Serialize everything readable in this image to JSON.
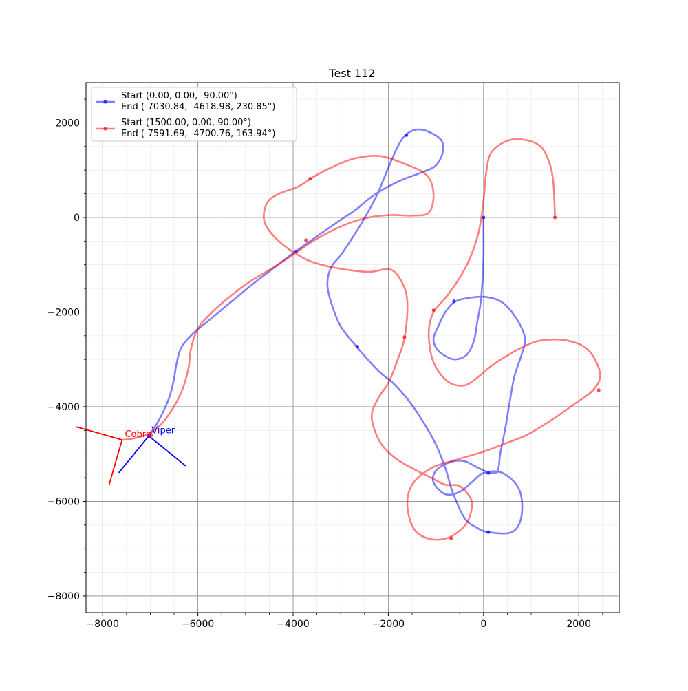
{
  "chart_data": {
    "type": "line",
    "title": "Test 112",
    "xlabel": "",
    "ylabel": "",
    "xlim": [
      -8350,
      2850
    ],
    "ylim": [
      -8350,
      2850
    ],
    "xticks": [
      -8000,
      -6000,
      -4000,
      -2000,
      0,
      2000
    ],
    "yticks": [
      -8000,
      -6000,
      -4000,
      -2000,
      0,
      2000
    ],
    "xtick_labels": [
      "−8000",
      "−6000",
      "−4000",
      "−2000",
      "0",
      "2000"
    ],
    "ytick_labels": [
      "−8000",
      "−6000",
      "−4000",
      "−2000",
      "0",
      "2000"
    ],
    "grid": true,
    "minor_grid": true,
    "legend_position": "upper-left",
    "series": [
      {
        "name_line1": "Start (0.00, 0.00, -90.00°)",
        "name_line2": " End  (-7030.84, -4618.98, 230.85°)",
        "color": "#0000ff",
        "points": [
          [
            0,
            0
          ],
          [
            0,
            -300
          ],
          [
            0,
            -800
          ],
          [
            -20,
            -1300
          ],
          [
            -60,
            -1800
          ],
          [
            -130,
            -2200
          ],
          [
            -200,
            -2600
          ],
          [
            -350,
            -2900
          ],
          [
            -600,
            -3000
          ],
          [
            -850,
            -2900
          ],
          [
            -1000,
            -2750
          ],
          [
            -1050,
            -2550
          ],
          [
            -950,
            -2300
          ],
          [
            -800,
            -2000
          ],
          [
            -600,
            -1780
          ],
          [
            -300,
            -1700
          ],
          [
            50,
            -1680
          ],
          [
            400,
            -1800
          ],
          [
            700,
            -2150
          ],
          [
            870,
            -2550
          ],
          [
            800,
            -2900
          ],
          [
            650,
            -3350
          ],
          [
            550,
            -3900
          ],
          [
            450,
            -4500
          ],
          [
            350,
            -5000
          ],
          [
            300,
            -5350
          ],
          [
            150,
            -5400
          ],
          [
            -100,
            -5300
          ],
          [
            -400,
            -5150
          ],
          [
            -700,
            -5170
          ],
          [
            -1000,
            -5350
          ],
          [
            -1050,
            -5600
          ],
          [
            -800,
            -5850
          ],
          [
            -500,
            -5800
          ],
          [
            -250,
            -5600
          ],
          [
            0,
            -5400
          ],
          [
            400,
            -5400
          ],
          [
            750,
            -5750
          ],
          [
            800,
            -6300
          ],
          [
            600,
            -6650
          ],
          [
            100,
            -6650
          ],
          [
            -150,
            -6550
          ],
          [
            -400,
            -6350
          ],
          [
            -650,
            -5800
          ],
          [
            -800,
            -5300
          ],
          [
            -1000,
            -4800
          ],
          [
            -1250,
            -4350
          ],
          [
            -1550,
            -3900
          ],
          [
            -1900,
            -3500
          ],
          [
            -2200,
            -3250
          ],
          [
            -2650,
            -2750
          ],
          [
            -3000,
            -2300
          ],
          [
            -3200,
            -1800
          ],
          [
            -3280,
            -1400
          ],
          [
            -3200,
            -1050
          ],
          [
            -3000,
            -800
          ],
          [
            -2800,
            -500
          ],
          [
            -2550,
            -100
          ],
          [
            -2250,
            450
          ],
          [
            -2000,
            1050
          ],
          [
            -1800,
            1500
          ],
          [
            -1650,
            1730
          ],
          [
            -1450,
            1850
          ],
          [
            -1200,
            1830
          ],
          [
            -900,
            1650
          ],
          [
            -850,
            1400
          ],
          [
            -1000,
            1100
          ],
          [
            -1300,
            950
          ],
          [
            -1700,
            800
          ],
          [
            -2100,
            600
          ],
          [
            -2400,
            400
          ],
          [
            -2700,
            150
          ],
          [
            -3000,
            -50
          ],
          [
            -3400,
            -330
          ],
          [
            -3950,
            -720
          ],
          [
            -4450,
            -1100
          ],
          [
            -4900,
            -1450
          ],
          [
            -5200,
            -1700
          ],
          [
            -5500,
            -1950
          ],
          [
            -5800,
            -2200
          ],
          [
            -6100,
            -2450
          ],
          [
            -6350,
            -2750
          ],
          [
            -6450,
            -3100
          ],
          [
            -6500,
            -3400
          ],
          [
            -6600,
            -3800
          ],
          [
            -6800,
            -4250
          ],
          [
            -7030.84,
            -4618.98
          ]
        ],
        "markers": [
          [
            0,
            0
          ],
          [
            -620,
            -1770
          ],
          [
            -1620,
            1740
          ],
          [
            -2650,
            -2730
          ],
          [
            -3940,
            -720
          ],
          [
            100,
            -5400
          ],
          [
            100,
            -6650
          ],
          [
            -7030.84,
            -4618.98
          ]
        ],
        "end_label": "Viper",
        "end_heading_deg": 230.85
      },
      {
        "name_line1": "Start (1500.00, 0.00, 90.00°)",
        "name_line2": " End  (-7591.69, -4700.76, 163.94°)",
        "color": "#ff0000",
        "points": [
          [
            1500,
            0
          ],
          [
            1490,
            300
          ],
          [
            1470,
            700
          ],
          [
            1400,
            1100
          ],
          [
            1200,
            1500
          ],
          [
            800,
            1650
          ],
          [
            450,
            1600
          ],
          [
            150,
            1350
          ],
          [
            50,
            900
          ],
          [
            0,
            350
          ],
          [
            -100,
            -300
          ],
          [
            -300,
            -900
          ],
          [
            -550,
            -1350
          ],
          [
            -800,
            -1700
          ],
          [
            -1050,
            -2000
          ],
          [
            -1150,
            -2400
          ],
          [
            -1100,
            -2900
          ],
          [
            -950,
            -3250
          ],
          [
            -700,
            -3500
          ],
          [
            -400,
            -3550
          ],
          [
            -150,
            -3400
          ],
          [
            150,
            -3150
          ],
          [
            450,
            -2950
          ],
          [
            800,
            -2750
          ],
          [
            1200,
            -2600
          ],
          [
            1750,
            -2600
          ],
          [
            2200,
            -2800
          ],
          [
            2450,
            -3300
          ],
          [
            2300,
            -3650
          ],
          [
            1900,
            -3950
          ],
          [
            1400,
            -4300
          ],
          [
            900,
            -4600
          ],
          [
            400,
            -4800
          ],
          [
            0,
            -4950
          ],
          [
            -500,
            -5100
          ],
          [
            -1100,
            -5300
          ],
          [
            -1500,
            -5650
          ],
          [
            -1600,
            -6100
          ],
          [
            -1450,
            -6600
          ],
          [
            -1100,
            -6800
          ],
          [
            -700,
            -6750
          ],
          [
            -350,
            -6450
          ],
          [
            -250,
            -6000
          ],
          [
            -500,
            -5680
          ],
          [
            -800,
            -5650
          ],
          [
            -1100,
            -5500
          ],
          [
            -1500,
            -5300
          ],
          [
            -1900,
            -5050
          ],
          [
            -2200,
            -4700
          ],
          [
            -2350,
            -4200
          ],
          [
            -2200,
            -3800
          ],
          [
            -2000,
            -3500
          ],
          [
            -1800,
            -3000
          ],
          [
            -1650,
            -2500
          ],
          [
            -1600,
            -1800
          ],
          [
            -1700,
            -1400
          ],
          [
            -1950,
            -1100
          ],
          [
            -2400,
            -1150
          ],
          [
            -2900,
            -1100
          ],
          [
            -3400,
            -1000
          ],
          [
            -3800,
            -850
          ],
          [
            -4300,
            -500
          ],
          [
            -4600,
            -100
          ],
          [
            -4550,
            300
          ],
          [
            -4300,
            500
          ],
          [
            -3900,
            650
          ],
          [
            -3500,
            900
          ],
          [
            -3100,
            1100
          ],
          [
            -2700,
            1250
          ],
          [
            -2200,
            1300
          ],
          [
            -1700,
            1150
          ],
          [
            -1200,
            900
          ],
          [
            -1050,
            500
          ],
          [
            -1150,
            100
          ],
          [
            -1500,
            40
          ],
          [
            -1950,
            50
          ],
          [
            -2400,
            0
          ],
          [
            -2900,
            -150
          ],
          [
            -3500,
            -450
          ],
          [
            -3950,
            -750
          ],
          [
            -4400,
            -1050
          ],
          [
            -4900,
            -1350
          ],
          [
            -5300,
            -1650
          ],
          [
            -5700,
            -2000
          ],
          [
            -6000,
            -2350
          ],
          [
            -6150,
            -2800
          ],
          [
            -6200,
            -3200
          ],
          [
            -6350,
            -3700
          ],
          [
            -6600,
            -4150
          ],
          [
            -6850,
            -4450
          ],
          [
            -7100,
            -4600
          ],
          [
            -7400,
            -4680
          ],
          [
            -7591.69,
            -4700.76
          ]
        ],
        "markers": [
          [
            1500,
            0
          ],
          [
            -1050,
            -1960
          ],
          [
            2420,
            -3650
          ],
          [
            -1660,
            -2530
          ],
          [
            -680,
            -6780
          ],
          [
            -3730,
            -480
          ],
          [
            -3640,
            820
          ],
          [
            -6970,
            -4600
          ]
        ],
        "end_label": "Cobra",
        "end_heading_deg": 163.94
      }
    ]
  }
}
